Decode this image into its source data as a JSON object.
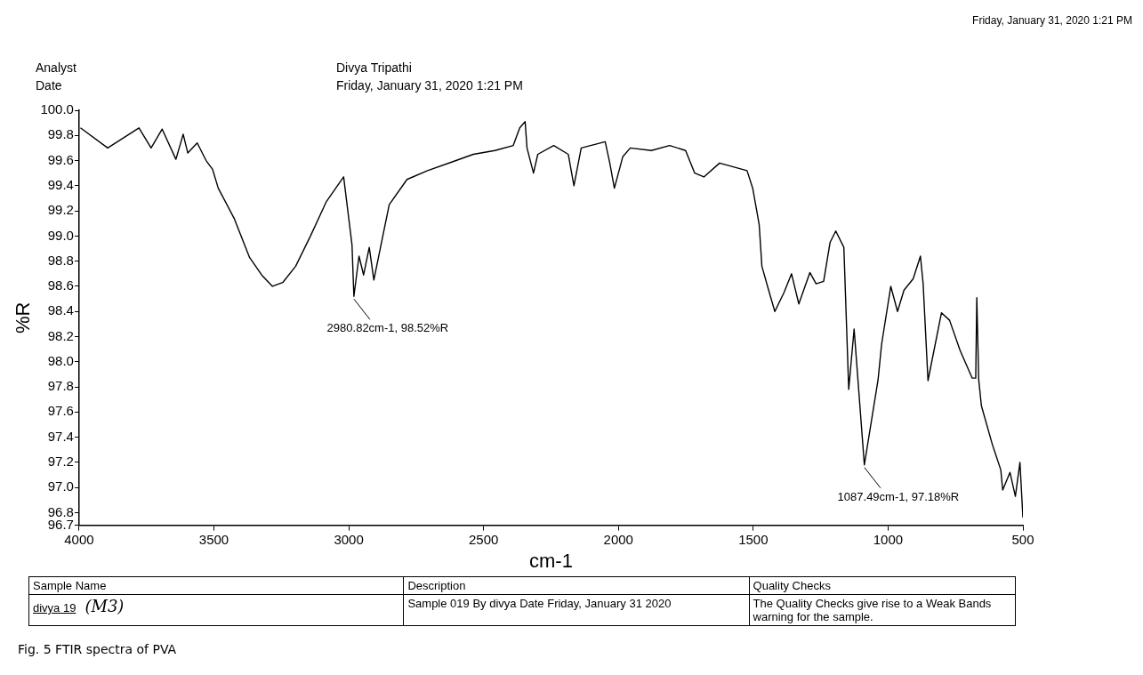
{
  "chart_data": {
    "type": "line",
    "xlabel": "cm-1",
    "ylabel": "%R",
    "xlim": [
      4000,
      500
    ],
    "xticks": [
      4000,
      3500,
      3000,
      2500,
      2000,
      1500,
      1000,
      500
    ],
    "ylim": [
      96.7,
      100.0
    ],
    "yticks": [
      96.7,
      96.8,
      {
        "value": 97.0,
        "label": "97.0"
      },
      97.2,
      97.4,
      97.6,
      97.8,
      {
        "value": 98.0,
        "label": "98.0"
      },
      98.2,
      98.4,
      98.6,
      98.8,
      {
        "value": 99.0,
        "label": "99.0"
      },
      99.2,
      99.4,
      99.6,
      99.8,
      {
        "value": 100.0,
        "label": "100.0"
      }
    ],
    "grid": false,
    "legend": false,
    "x": [
      3995,
      3894,
      3778,
      3733,
      3692,
      3641,
      3614,
      3597,
      3562,
      3529,
      3505,
      3484,
      3425,
      3368,
      3323,
      3283,
      3245,
      3197,
      3142,
      3084,
      3019,
      2988,
      2981,
      2962,
      2945,
      2924,
      2907,
      2850,
      2784,
      2708,
      2616,
      2538,
      2458,
      2390,
      2366,
      2346,
      2339,
      2315,
      2299,
      2240,
      2186,
      2165,
      2138,
      2049,
      2032,
      2015,
      1984,
      1956,
      1878,
      1810,
      1751,
      1717,
      1683,
      1625,
      1523,
      1502,
      1478,
      1468,
      1443,
      1420,
      1386,
      1358,
      1331,
      1290,
      1267,
      1239,
      1215,
      1194,
      1164,
      1146,
      1126,
      1088,
      1037,
      1024,
      990,
      965,
      941,
      907,
      880,
      870,
      852,
      802,
      772,
      733,
      688,
      675,
      671,
      664,
      654,
      613,
      582,
      575,
      548,
      528,
      511,
      500
    ],
    "series": [
      {
        "color": "#000000",
        "values": [
          99.86,
          99.7,
          99.86,
          99.7,
          99.85,
          99.61,
          99.81,
          99.66,
          99.74,
          99.6,
          99.53,
          99.38,
          99.14,
          98.83,
          98.69,
          98.6,
          98.63,
          98.76,
          99.0,
          99.27,
          99.47,
          98.93,
          98.52,
          98.84,
          98.69,
          98.91,
          98.65,
          99.25,
          99.45,
          99.52,
          99.59,
          99.65,
          99.68,
          99.72,
          99.86,
          99.91,
          99.7,
          99.5,
          99.65,
          99.72,
          99.65,
          99.4,
          99.7,
          99.75,
          99.58,
          99.38,
          99.63,
          99.7,
          99.68,
          99.72,
          99.68,
          99.5,
          99.47,
          99.58,
          99.52,
          99.38,
          99.09,
          98.76,
          98.57,
          98.4,
          98.55,
          98.7,
          98.46,
          98.71,
          98.62,
          98.64,
          98.95,
          99.04,
          98.91,
          97.78,
          98.26,
          97.18,
          97.86,
          98.14,
          98.6,
          98.4,
          98.57,
          98.66,
          98.84,
          98.62,
          97.85,
          98.39,
          98.33,
          98.09,
          97.87,
          97.87,
          98.51,
          97.86,
          97.65,
          97.34,
          97.14,
          96.98,
          97.12,
          96.93,
          97.2,
          96.76
        ]
      }
    ],
    "annotations": [
      {
        "text": "2980.82cm-1, 98.52%R",
        "x": 2980.82,
        "y": 98.52
      },
      {
        "text": "1087.49cm-1, 97.18%R",
        "x": 1087.49,
        "y": 97.18
      },
      "Analyst",
      "Divya Tripathi",
      "Date",
      "Friday, January 31, 2020 1:21 PM",
      "Friday, January 31, 2020 1:21 PM",
      "Sample Name",
      "Description",
      "Quality Checks",
      "divya 19",
      "(M3)",
      "Sample 019 By divya Date Friday, January 31 2020",
      "The Quality Checks give rise to a Weak Bands warning for the sample.",
      "Fig. 5 FTIR spectra of PVA"
    ]
  }
}
